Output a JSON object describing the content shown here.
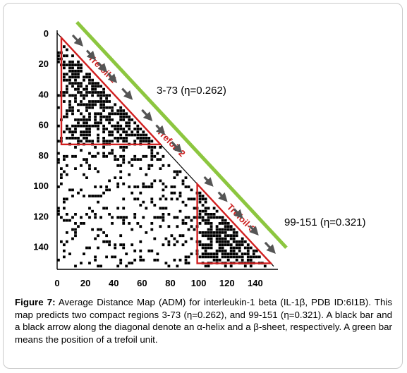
{
  "figure": {
    "caption_label": "Figure 7:",
    "caption_text": " Average Distance Map (ADM) for interleukin-1 beta (IL-1β, PDB ID:6I1B). This map predicts two compact regions 3-73 (η=0.262), and 99-151 (η=0.321). A black bar and a black arrow along the diagonal denote an α-helix and a β-sheet, respectively. A green bar means the position of a trefoil unit."
  },
  "chart_data": {
    "type": "heatmap",
    "title": "",
    "xlabel": "",
    "ylabel": "",
    "xlim": [
      0,
      155
    ],
    "ylim": [
      0,
      155
    ],
    "y_inverted": true,
    "x_ticks": [
      "0",
      "20",
      "40",
      "60",
      "80",
      "100",
      "120",
      "140"
    ],
    "y_ticks": [
      "0",
      "20",
      "40",
      "60",
      "80",
      "100",
      "120",
      "140"
    ],
    "n_residues": 153,
    "compact_regions": [
      {
        "start": 3,
        "end": 73,
        "label": "3-73 (η=0.262)",
        "eta": 0.262
      },
      {
        "start": 99,
        "end": 151,
        "label": "99-151 (η=0.321)",
        "eta": 0.321
      }
    ],
    "trefoil_units": [
      {
        "label": "Trefoil-1",
        "start": 3,
        "end": 52
      },
      {
        "label": "Trefoil-2",
        "start": 52,
        "end": 100
      },
      {
        "label": "Trefoil-3",
        "start": 100,
        "end": 151
      }
    ],
    "beta_strands": [
      [
        6,
        12
      ],
      [
        16,
        21
      ],
      [
        24,
        29
      ],
      [
        31,
        36
      ],
      [
        41,
        47
      ],
      [
        55,
        61
      ],
      [
        65,
        70
      ],
      [
        76,
        82
      ],
      [
        99,
        104
      ],
      [
        109,
        114
      ],
      [
        120,
        125
      ],
      [
        131,
        136
      ],
      [
        142,
        148
      ]
    ],
    "colors": {
      "contact": "#000000",
      "region_box": "#d11f1f",
      "trefoil_bar": "#8cc63f",
      "trefoil_label": "#cc1f1f",
      "strand_arrow": "#555555"
    }
  }
}
